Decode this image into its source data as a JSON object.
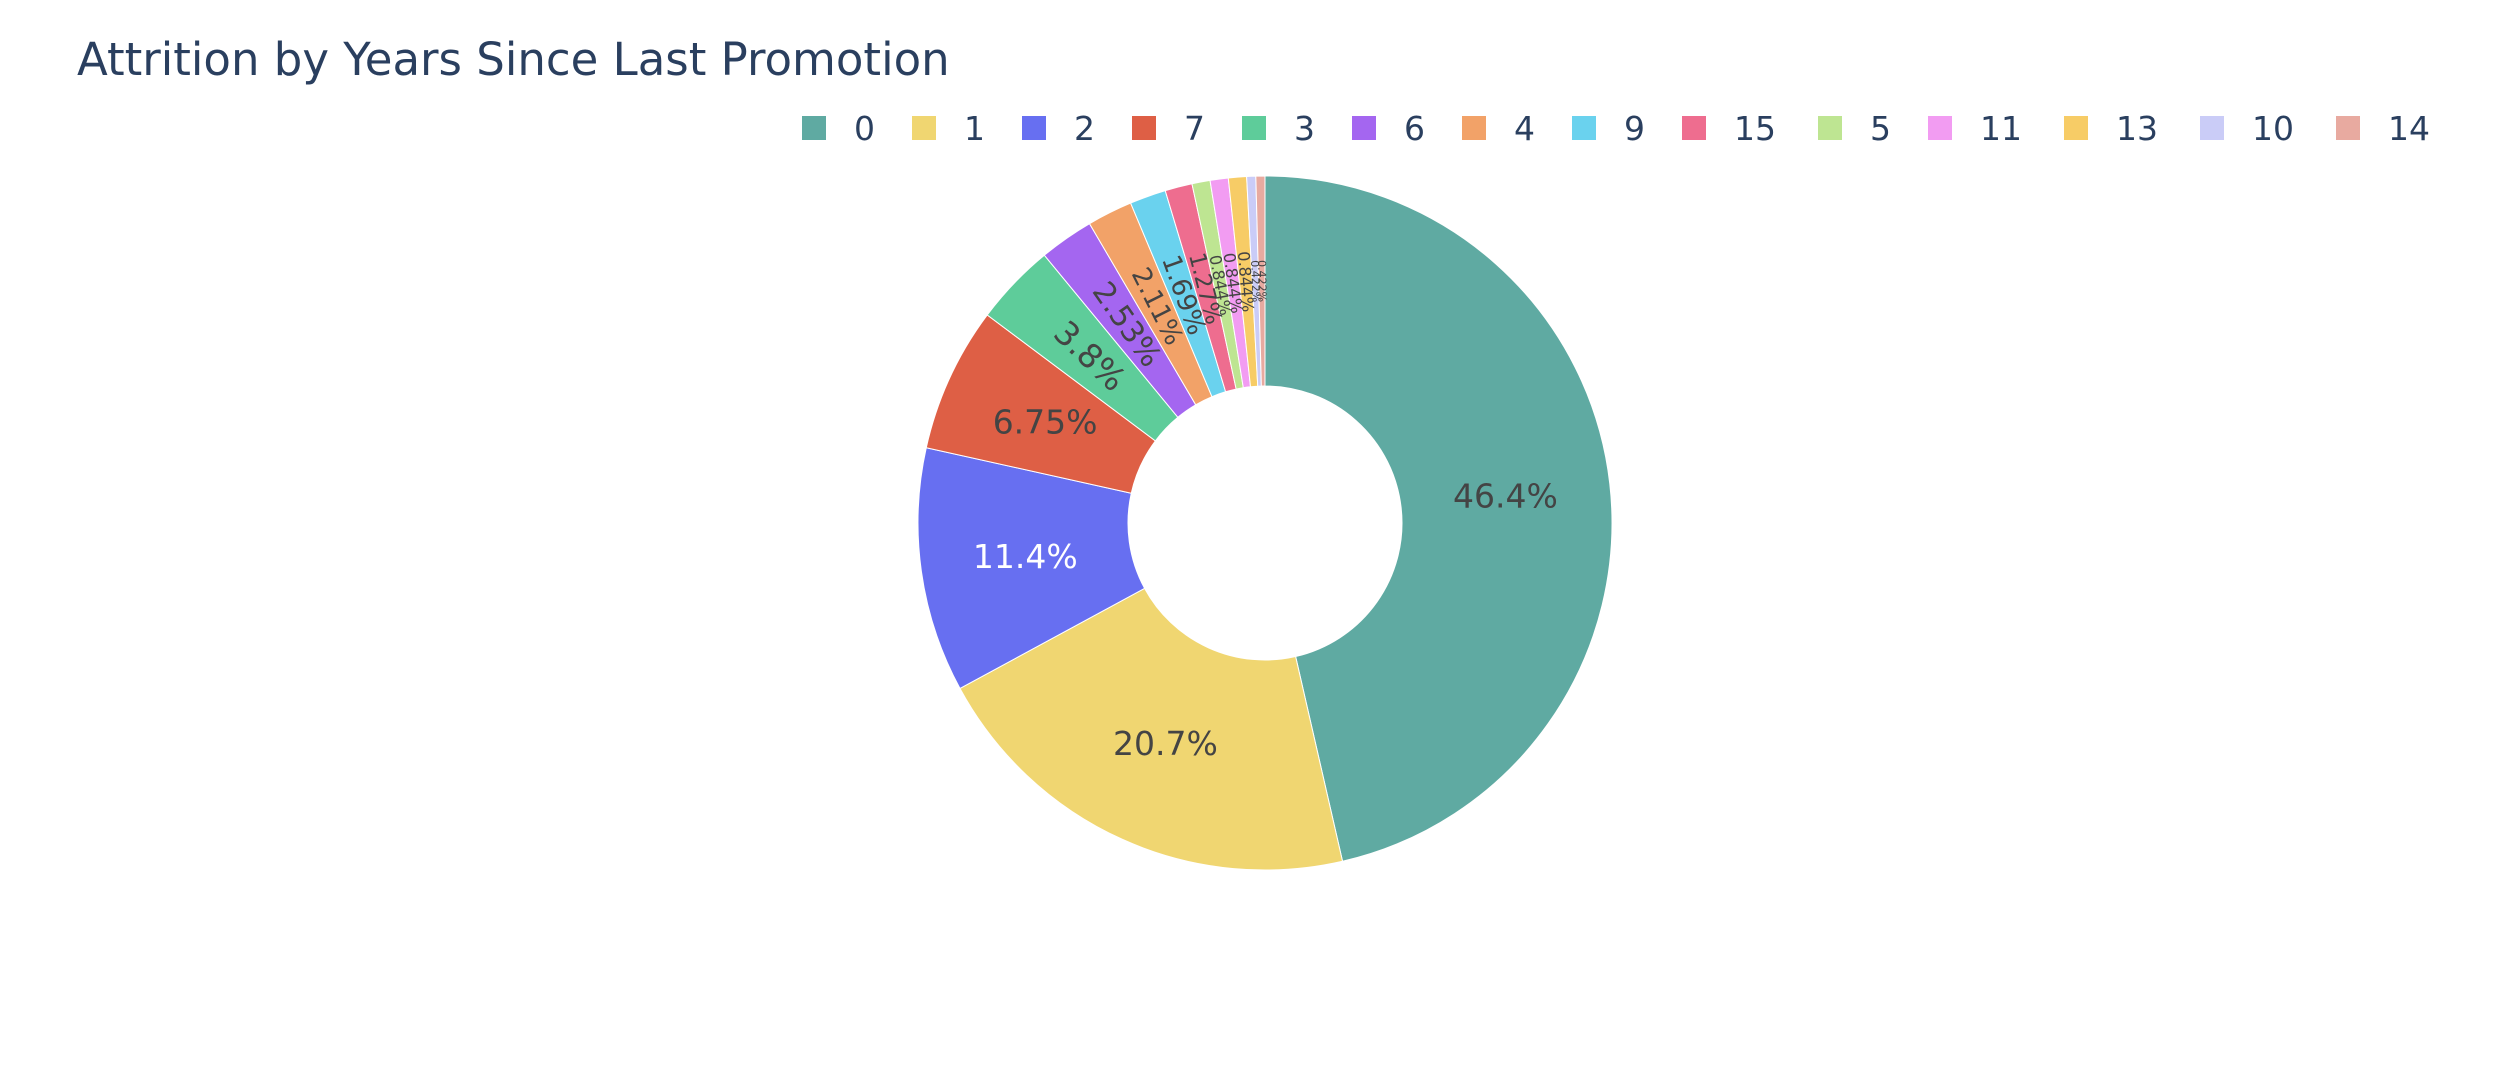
{
  "chart_data": {
    "type": "pie",
    "hole": true,
    "title": "Attrition by Years Since Last Promotion",
    "legend_position": "top-right",
    "categories": [
      "0",
      "1",
      "2",
      "7",
      "3",
      "6",
      "4",
      "9",
      "15",
      "5",
      "11",
      "13",
      "10",
      "14"
    ],
    "values": [
      110,
      49,
      27,
      16,
      9,
      6,
      5,
      4,
      3,
      2,
      2,
      2,
      1,
      1
    ],
    "percent_labels": [
      "46.4%",
      "20.7%",
      "11.4%",
      "6.75%",
      "3.8%",
      "2.53%",
      "2.11%",
      "1.69%",
      "1.27%",
      "0.844%",
      "0.844%",
      "0.844%",
      "0.422%",
      "0.422%"
    ],
    "colors": [
      "#5FAAA2",
      "#F0D671",
      "#676FF1",
      "#DE5F45",
      "#5ECC9A",
      "#A466F0",
      "#F2A268",
      "#6AD2EE",
      "#EE6D8F",
      "#BEE592",
      "#F29CF2",
      "#F7CC66",
      "#CACCF7",
      "#E8AAA0"
    ],
    "label_colors": [
      "#444444",
      "#444444",
      "#ffffff",
      "#444444",
      "#444444",
      "#444444",
      "#444444",
      "#444444",
      "#444444",
      "#444444",
      "#444444",
      "#444444",
      "#444444",
      "#444444"
    ]
  }
}
